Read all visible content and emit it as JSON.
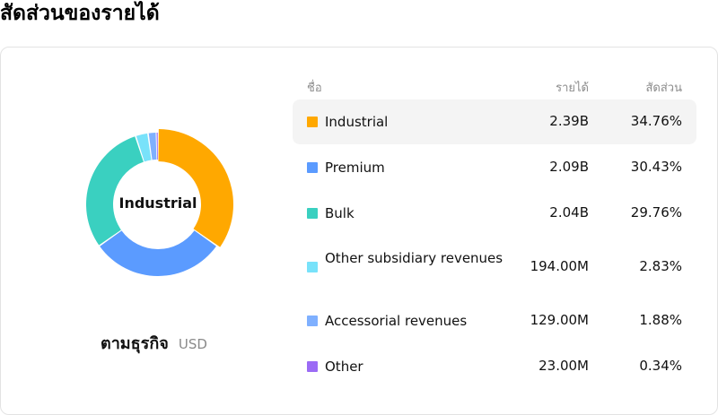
{
  "page_title": "สัดส่วนของรายได้",
  "breakdown": {
    "label": "ตามธุรกิจ",
    "currency": "USD"
  },
  "donut_center_label": "Industrial",
  "table": {
    "headers": {
      "name": "ชื่อ",
      "revenue": "รายได้",
      "share": "สัดส่วน"
    }
  },
  "chart_data": {
    "type": "pie",
    "style": "donut",
    "highlighted": "Industrial",
    "categories": [
      "Industrial",
      "Premium",
      "Bulk",
      "Other subsidiary revenues",
      "Accessorial revenues",
      "Other"
    ],
    "values": [
      34.76,
      30.43,
      29.76,
      2.83,
      1.88,
      0.34
    ],
    "revenue_labels": [
      "2.39B",
      "2.09B",
      "2.04B",
      "194.00M",
      "129.00M",
      "23.00M"
    ],
    "share_labels": [
      "34.76%",
      "30.43%",
      "29.76%",
      "2.83%",
      "1.88%",
      "0.34%"
    ],
    "colors": [
      "#FFA800",
      "#5B9BFF",
      "#3AD0C0",
      "#78E2FA",
      "#7FB0FF",
      "#9B6BF5"
    ]
  }
}
